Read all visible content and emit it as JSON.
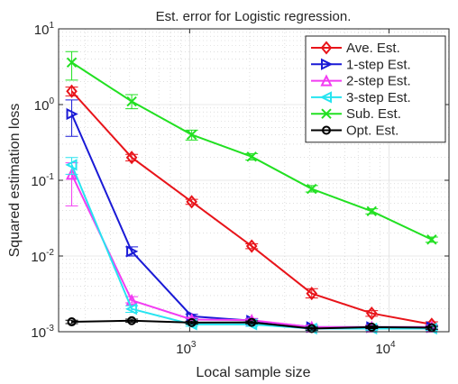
{
  "chart_data": {
    "type": "line",
    "title": "Est. error for Logistic regression.",
    "xlabel": "Local sample size",
    "ylabel": "Squared estimation loss",
    "xscale": "log",
    "yscale": "log",
    "xlim": [
      220,
      20000
    ],
    "ylim": [
      0.001,
      10
    ],
    "grid": true,
    "legend_position": "top-right",
    "x_ticks": [
      {
        "value": 1000,
        "base": "10",
        "exp": "3"
      },
      {
        "value": 10000,
        "base": "10",
        "exp": "4"
      }
    ],
    "y_ticks": [
      {
        "value": 0.001,
        "base": "10",
        "exp": "-3"
      },
      {
        "value": 0.01,
        "base": "10",
        "exp": "-2"
      },
      {
        "value": 0.1,
        "base": "10",
        "exp": "-1"
      },
      {
        "value": 1,
        "base": "10",
        "exp": "0"
      },
      {
        "value": 10,
        "base": "10",
        "exp": "1"
      }
    ],
    "x": [
      256,
      512,
      1024,
      2048,
      4096,
      8192,
      16384
    ],
    "series": [
      {
        "name": "Ave. Est.",
        "color": "#e8141a",
        "marker": "diamond",
        "values": [
          1.5,
          0.2,
          0.052,
          0.0135,
          0.0032,
          0.00175,
          0.00125
        ],
        "err_lo": [
          1.3,
          0.18,
          0.048,
          0.0125,
          0.0028,
          0.0016,
          0.00115
        ],
        "err_hi": [
          1.7,
          0.22,
          0.056,
          0.0145,
          0.0037,
          0.0019,
          0.00135
        ]
      },
      {
        "name": "1-step Est.",
        "color": "#1a1ad6",
        "marker": "triangle-right",
        "values": [
          0.75,
          0.0115,
          0.0016,
          0.0014,
          0.00115,
          0.00115,
          0.00115
        ],
        "err_lo": [
          0.38,
          0.01,
          0.0015,
          0.00132,
          0.00108,
          0.00108,
          0.00108
        ],
        "err_hi": [
          1.15,
          0.0132,
          0.0017,
          0.00148,
          0.00122,
          0.00122,
          0.00122
        ]
      },
      {
        "name": "2-step Est.",
        "color": "#f23cf2",
        "marker": "triangle-up",
        "values": [
          0.12,
          0.0026,
          0.00145,
          0.00142,
          0.00115,
          0.00115,
          0.00115
        ],
        "err_lo": [
          0.046,
          0.0024,
          0.00137,
          0.00134,
          0.00108,
          0.00108,
          0.00108
        ],
        "err_hi": [
          0.17,
          0.0029,
          0.00155,
          0.0015,
          0.00122,
          0.00122,
          0.00122
        ]
      },
      {
        "name": "3-step Est.",
        "color": "#26e4f0",
        "marker": "triangle-left",
        "values": [
          0.16,
          0.002,
          0.00125,
          0.00125,
          0.0011,
          0.0011,
          0.0011
        ],
        "err_lo": [
          0.12,
          0.0018,
          0.00118,
          0.00118,
          0.00104,
          0.00104,
          0.00104
        ],
        "err_hi": [
          0.2,
          0.0022,
          0.00132,
          0.00132,
          0.00116,
          0.00116,
          0.00116
        ]
      },
      {
        "name": "Sub. Est.",
        "color": "#22e022",
        "marker": "x",
        "values": [
          3.6,
          1.1,
          0.4,
          0.205,
          0.077,
          0.039,
          0.0165
        ],
        "err_lo": [
          2.1,
          0.88,
          0.34,
          0.185,
          0.07,
          0.036,
          0.0152
        ],
        "err_hi": [
          5.0,
          1.35,
          0.46,
          0.225,
          0.085,
          0.042,
          0.0178
        ]
      },
      {
        "name": "Opt. Est.",
        "color": "#000000",
        "marker": "circle",
        "values": [
          0.00135,
          0.0014,
          0.00132,
          0.00133,
          0.0011,
          0.00115,
          0.00113
        ],
        "err_lo": [
          0.00128,
          0.00133,
          0.00126,
          0.00127,
          0.00105,
          0.0011,
          0.00108
        ],
        "err_hi": [
          0.00142,
          0.00147,
          0.00138,
          0.00139,
          0.00115,
          0.0012,
          0.00118
        ]
      }
    ]
  }
}
